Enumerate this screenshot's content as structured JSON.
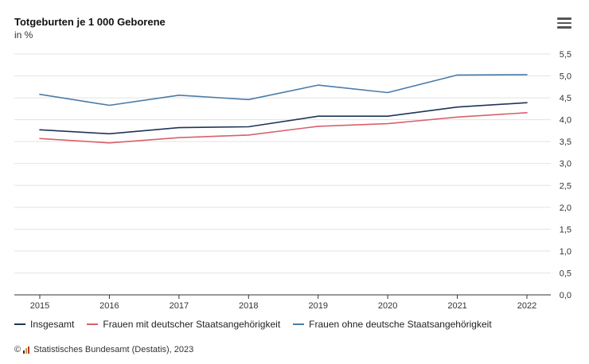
{
  "header": {
    "title": "Totgeburten je 1 000 Geborene",
    "subtitle": "in %",
    "menu_icon": "hamburger-menu-icon"
  },
  "footer": {
    "copyright_symbol": "©",
    "source": "Statistisches Bundesamt (Destatis), 2023",
    "logo_icon": "destatis-logo-icon"
  },
  "chart_data": {
    "type": "line",
    "title": "Totgeburten je 1 000 Geborene",
    "subtitle": "in %",
    "x": [
      "2015",
      "2016",
      "2017",
      "2018",
      "2019",
      "2020",
      "2021",
      "2022"
    ],
    "ylim": [
      0,
      5.5
    ],
    "yticks": [
      "0,0",
      "0,5",
      "1,0",
      "1,5",
      "2,0",
      "2,5",
      "3,0",
      "3,5",
      "4,0",
      "4,5",
      "5,0",
      "5,5"
    ],
    "ytick_values": [
      0,
      0.5,
      1.0,
      1.5,
      2.0,
      2.5,
      3.0,
      3.5,
      4.0,
      4.5,
      5.0,
      5.5
    ],
    "grid": true,
    "y_axis_side": "right",
    "legend_position": "bottom-left",
    "series": [
      {
        "name": "Insgesamt",
        "color": "#1d3557",
        "values": [
          3.77,
          3.68,
          3.82,
          3.84,
          4.08,
          4.08,
          4.29,
          4.39
        ]
      },
      {
        "name": "Frauen mit deutscher Staatsangehörigkeit",
        "color": "#d9606b",
        "values": [
          3.57,
          3.47,
          3.59,
          3.65,
          3.85,
          3.91,
          4.06,
          4.16
        ]
      },
      {
        "name": "Frauen ohne deutsche Staatsangehörigkeit",
        "color": "#4a7ba7",
        "values": [
          4.58,
          4.33,
          4.56,
          4.46,
          4.79,
          4.62,
          5.02,
          5.03
        ]
      }
    ]
  }
}
